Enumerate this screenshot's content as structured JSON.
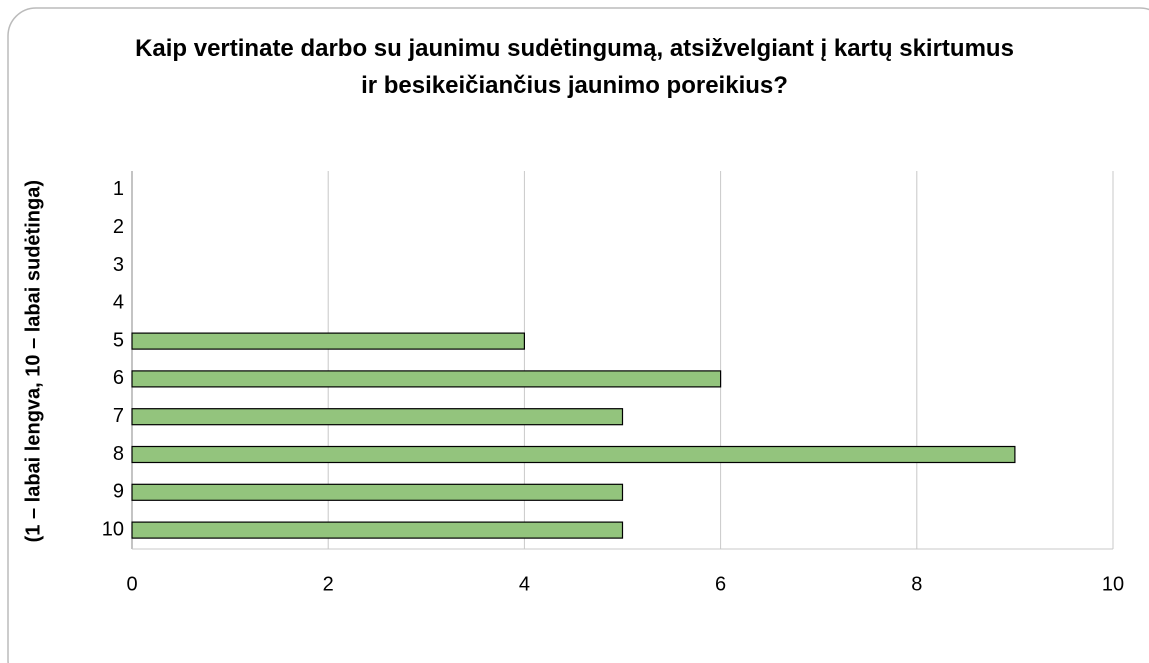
{
  "chart_data": {
    "type": "bar",
    "orientation": "horizontal",
    "title": "Kaip vertinate darbo su jaunimu sudėtingumą, atsižvelgiant į kartų skirtumus ir besikeičiančius jaunimo poreikius?",
    "y_label": "(1 – labai lengva, 10 – labai sudėtinga)",
    "categories": [
      "1",
      "2",
      "3",
      "4",
      "5",
      "6",
      "7",
      "8",
      "9",
      "10"
    ],
    "values": [
      0,
      0,
      0,
      0,
      4,
      6,
      5,
      9,
      5,
      5
    ],
    "color": "#93c47d",
    "xlim": [
      0,
      10
    ],
    "xticks": [
      0,
      2,
      4,
      6,
      8,
      10
    ],
    "grid": true
  }
}
